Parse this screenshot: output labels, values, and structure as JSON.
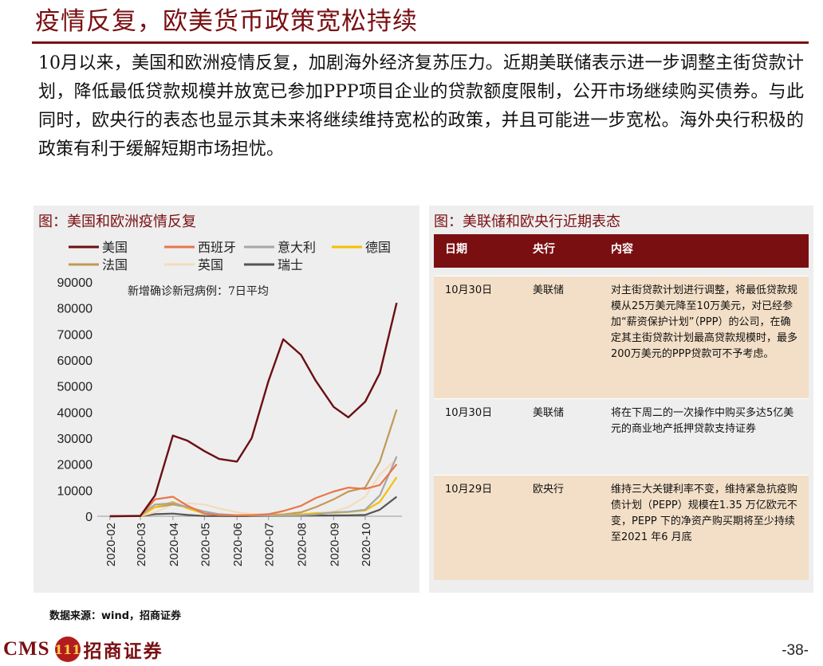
{
  "page": {
    "title": "疫情反复，欧美货币政策宽松持续",
    "body": "10月以来，美国和欧洲疫情反复，加剧海外经济复苏压力。近期美联储表示进一步调整主街贷款计划，降低最低贷款规模并放宽已参加PPP项目企业的贷款额度限制，公开市场继续购买债券。与此同时，欧央行的表态也显示其未来将继续维持宽松的政策，并且可能进一步宽松。海外央行积极的政策有利于缓解短期市场担忧。",
    "source": "数据来源：wind，招商证券",
    "page_number": "-38-"
  },
  "logo": {
    "cms": "CMS",
    "badge": "111",
    "name": "招商证券"
  },
  "left_panel": {
    "title": "图：美国和欧洲疫情反复"
  },
  "right_panel": {
    "title": "图：美联储和欧央行近期表态",
    "headers": [
      "日期",
      "央行",
      "内容"
    ],
    "rows": [
      {
        "date": "10月30日",
        "bank": "美联储",
        "content": "对主街贷款计划进行调整，将最低贷款规模从25万美元降至10万美元，对已经参加“薪资保护计划”（PPP）的公司，在确定其主街贷款计划最高贷款规模时，最多200万美元的PPP贷款可不予考虑。"
      },
      {
        "date": "10月30日",
        "bank": "美联储",
        "content": "将在下周二的一次操作中购买多达5亿美元的商业地产抵押贷款支持证券"
      },
      {
        "date": "10月29日",
        "bank": "欧央行",
        "content": "维持三大关键利率不变，维持紧急抗疫购债计划（PEPP）规模在1.35 万亿欧元不变，PEPP 下的净资产购买期将至少持续至2021 年6 月底"
      }
    ]
  },
  "chart_data": {
    "type": "line",
    "annotation": "新增确诊新冠病例：7日平均",
    "ylim": [
      0,
      90000
    ],
    "yticks": [
      "0",
      "10000",
      "20000",
      "30000",
      "40000",
      "50000",
      "60000",
      "70000",
      "80000",
      "90000"
    ],
    "xticks": [
      "2020-02",
      "2020-03",
      "2020-04",
      "2020-05",
      "2020-06",
      "2020-07",
      "2020-08",
      "2020-09",
      "2020-10"
    ],
    "x": [
      "2020-02-01",
      "2020-03-01",
      "2020-03-15",
      "2020-04-01",
      "2020-04-15",
      "2020-05-01",
      "2020-05-15",
      "2020-06-01",
      "2020-06-15",
      "2020-07-01",
      "2020-07-15",
      "2020-08-01",
      "2020-08-15",
      "2020-09-01",
      "2020-09-15",
      "2020-10-01",
      "2020-10-15",
      "2020-10-31"
    ],
    "series": [
      {
        "name": "美国",
        "color": "#6b0f12",
        "values": [
          0,
          100,
          8000,
          31000,
          29000,
          25000,
          22000,
          21000,
          30000,
          52000,
          68000,
          62000,
          52000,
          42000,
          38000,
          44000,
          55000,
          82000
        ]
      },
      {
        "name": "西班牙",
        "color": "#e8764a",
        "values": [
          0,
          100,
          6500,
          7500,
          4000,
          1000,
          400,
          300,
          400,
          800,
          2000,
          4000,
          7000,
          9500,
          11000,
          10500,
          12000,
          20000
        ]
      },
      {
        "name": "意大利",
        "color": "#a6a6a6",
        "values": [
          0,
          300,
          4500,
          5000,
          3500,
          1800,
          800,
          400,
          300,
          200,
          250,
          400,
          700,
          1500,
          1700,
          2500,
          8000,
          23000
        ]
      },
      {
        "name": "德国",
        "color": "#f5c000",
        "values": [
          0,
          50,
          3500,
          5500,
          3000,
          1000,
          600,
          400,
          500,
          400,
          400,
          700,
          1200,
          1300,
          1600,
          2200,
          5500,
          15000
        ]
      },
      {
        "name": "法国",
        "color": "#c29a55",
        "values": [
          0,
          100,
          3500,
          4500,
          3500,
          1000,
          500,
          400,
          300,
          500,
          700,
          1500,
          3500,
          6500,
          9500,
          11000,
          21000,
          41000
        ]
      },
      {
        "name": "英国",
        "color": "#f2dcbc",
        "values": [
          0,
          50,
          1500,
          4500,
          5000,
          4500,
          3000,
          1500,
          900,
          700,
          700,
          800,
          1200,
          1800,
          3500,
          7500,
          16000,
          22000
        ]
      },
      {
        "name": "瑞士",
        "color": "#555555",
        "values": [
          0,
          50,
          800,
          1000,
          500,
          100,
          50,
          30,
          50,
          100,
          150,
          200,
          250,
          300,
          350,
          500,
          2500,
          7500
        ]
      }
    ]
  }
}
